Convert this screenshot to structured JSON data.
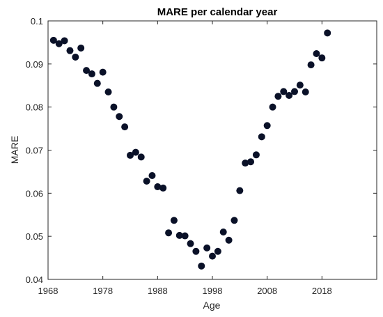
{
  "chart_data": {
    "type": "scatter",
    "title": "MARE per calendar year",
    "xlabel": "Age",
    "ylabel": "MARE",
    "xlim": [
      1968,
      2028
    ],
    "ylim": [
      0.04,
      0.1
    ],
    "xticks": [
      1968,
      1978,
      1988,
      1998,
      2008,
      2018
    ],
    "yticks": [
      0.04,
      0.05,
      0.06,
      0.07,
      0.08,
      0.09,
      0.1
    ],
    "grid": false,
    "marker_color": "#0a1128",
    "series": [
      {
        "x": [
          1969,
          1970,
          1971,
          1972,
          1973,
          1974,
          1975,
          1976,
          1977,
          1978,
          1979,
          1980,
          1981,
          1982,
          1983,
          1984,
          1985,
          1986,
          1987,
          1988,
          1989,
          1990,
          1991,
          1992,
          1993,
          1994,
          1995,
          1996,
          1997,
          1998,
          1999,
          2000,
          2001,
          2002,
          2003,
          2004,
          2005,
          2006,
          2007,
          2008,
          2009,
          2010,
          2011,
          2012,
          2013,
          2014,
          2015,
          2016,
          2017,
          2018,
          2019
        ],
        "y": [
          0.0955,
          0.0947,
          0.0954,
          0.0931,
          0.0916,
          0.0937,
          0.0885,
          0.0877,
          0.0855,
          0.0881,
          0.0835,
          0.08,
          0.0778,
          0.0754,
          0.0688,
          0.0695,
          0.0684,
          0.0628,
          0.0641,
          0.0615,
          0.0612,
          0.0508,
          0.0537,
          0.0502,
          0.0501,
          0.0483,
          0.0465,
          0.0431,
          0.0473,
          0.0454,
          0.0465,
          0.051,
          0.0491,
          0.0537,
          0.0606,
          0.067,
          0.0673,
          0.0689,
          0.0731,
          0.0757,
          0.08,
          0.0825,
          0.0836,
          0.0827,
          0.0836,
          0.0851,
          0.0835,
          0.0898,
          0.0924,
          0.0914,
          0.0972
        ]
      }
    ]
  }
}
